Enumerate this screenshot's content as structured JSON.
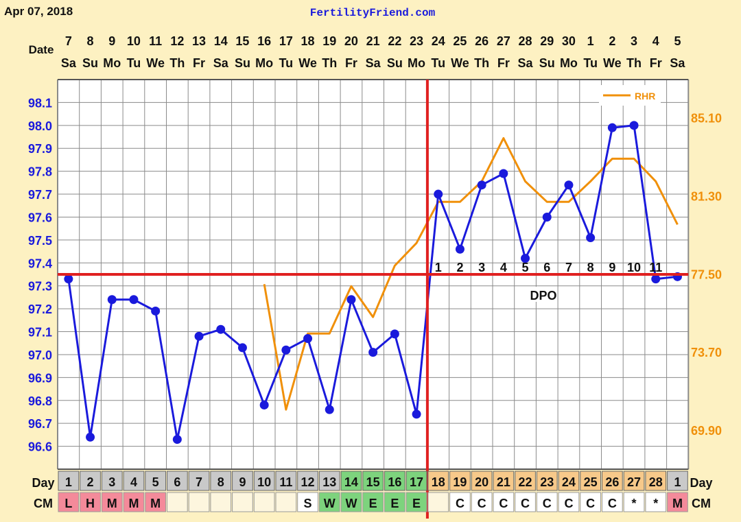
{
  "header": {
    "date_label": "Apr 07, 2018",
    "site_name": "FertilityFriend.com",
    "date_row_label": "Date"
  },
  "colors": {
    "background": "#fdf1c2",
    "temp_line": "#1a1adc",
    "rhr_line": "#f0900a",
    "coverline": "#e02020",
    "ovulation_line": "#e02020",
    "grid": "#8a8a8a",
    "left_axis_text": "#1a1adc",
    "right_axis_text": "#f0900a",
    "day_box_grey": "#c9c9c9",
    "day_box_green": "#7dd37d",
    "day_box_peach": "#f7c98a",
    "cm_red": "#f48a9a",
    "cm_green": "#7dd37d",
    "cm_white": "#ffffff"
  },
  "chart_data": {
    "type": "line",
    "title": "",
    "dates": [
      "7",
      "8",
      "9",
      "10",
      "11",
      "12",
      "13",
      "14",
      "15",
      "16",
      "17",
      "18",
      "19",
      "20",
      "21",
      "22",
      "23",
      "24",
      "25",
      "26",
      "27",
      "28",
      "29",
      "30",
      "1",
      "2",
      "3",
      "4",
      "5"
    ],
    "weekdays": [
      "Sa",
      "Su",
      "Mo",
      "Tu",
      "We",
      "Th",
      "Fr",
      "Sa",
      "Su",
      "Mo",
      "Tu",
      "We",
      "Th",
      "Fr",
      "Sa",
      "Su",
      "Mo",
      "Tu",
      "We",
      "Th",
      "Fr",
      "Sa",
      "Su",
      "Mo",
      "Tu",
      "We",
      "Th",
      "Fr",
      "Sa"
    ],
    "cycle_days": [
      "1",
      "2",
      "3",
      "4",
      "5",
      "6",
      "7",
      "8",
      "9",
      "10",
      "11",
      "12",
      "13",
      "14",
      "15",
      "16",
      "17",
      "18",
      "19",
      "20",
      "21",
      "22",
      "23",
      "24",
      "25",
      "26",
      "27",
      "28",
      "1"
    ],
    "day_box_colors": [
      "grey",
      "grey",
      "grey",
      "grey",
      "grey",
      "grey",
      "grey",
      "grey",
      "grey",
      "grey",
      "grey",
      "grey",
      "grey",
      "green",
      "green",
      "green",
      "green",
      "peach",
      "peach",
      "peach",
      "peach",
      "peach",
      "peach",
      "peach",
      "peach",
      "peach",
      "peach",
      "peach",
      "grey"
    ],
    "y_left": {
      "ylim": [
        96.5,
        98.2
      ],
      "tick_labels": [
        "98.1",
        "98.0",
        "97.9",
        "97.8",
        "97.7",
        "97.6",
        "97.5",
        "97.4",
        "97.3",
        "97.2",
        "97.1",
        "97.0",
        "96.9",
        "96.8",
        "96.7",
        "96.6"
      ],
      "tick_values": [
        98.1,
        98.0,
        97.9,
        97.8,
        97.7,
        97.6,
        97.5,
        97.4,
        97.3,
        97.2,
        97.1,
        97.0,
        96.9,
        96.8,
        96.7,
        96.6
      ]
    },
    "y_right": {
      "ylim": [
        68.0,
        86.95
      ],
      "tick_labels": [
        "85.10",
        "81.30",
        "77.50",
        "73.70",
        "69.90"
      ],
      "tick_values": [
        85.1,
        81.3,
        77.5,
        73.7,
        69.9
      ]
    },
    "series": [
      {
        "axis": "left",
        "values": [
          97.33,
          96.64,
          97.24,
          97.24,
          97.19,
          96.63,
          97.08,
          97.11,
          97.03,
          96.78,
          97.02,
          97.07,
          96.76,
          97.24,
          97.01,
          97.09,
          96.74,
          97.7,
          97.46,
          97.74,
          97.79,
          97.42,
          97.6,
          97.74,
          97.51,
          97.99,
          98.0,
          97.33,
          97.34
        ]
      },
      {
        "name": "RHR",
        "axis": "right",
        "values": [
          null,
          null,
          null,
          null,
          null,
          null,
          null,
          null,
          null,
          77.0,
          70.9,
          74.6,
          74.6,
          76.9,
          75.4,
          77.9,
          79.0,
          81.0,
          81.0,
          82.0,
          84.1,
          82.0,
          81.0,
          81.0,
          82.0,
          83.1,
          83.1,
          82.0,
          79.9
        ]
      }
    ],
    "coverline": 97.35,
    "ovulation_day_index": 16,
    "dpo_labels": [
      "1",
      "2",
      "3",
      "4",
      "5",
      "6",
      "7",
      "8",
      "9",
      "10",
      "11"
    ],
    "dpo_start_index": 17,
    "dpo_caption": "DPO",
    "legend": {
      "label": "RHR",
      "position": "top-right"
    }
  },
  "bottom_rows": {
    "day_label": "Day",
    "cm_label": "CM",
    "cm_values": [
      "L",
      "H",
      "M",
      "M",
      "M",
      "",
      "",
      "",
      "",
      "",
      "",
      "S",
      "W",
      "W",
      "E",
      "E",
      "E",
      "",
      "C",
      "C",
      "C",
      "C",
      "C",
      "C",
      "C",
      "C",
      "*",
      "*",
      "M"
    ],
    "cm_colors": [
      "red",
      "red",
      "red",
      "red",
      "red",
      "",
      "",
      "",
      "",
      "",
      "",
      "white",
      "green",
      "green",
      "green",
      "green",
      "green",
      "",
      "white",
      "white",
      "white",
      "white",
      "white",
      "white",
      "white",
      "white",
      "white",
      "white",
      "red"
    ]
  }
}
